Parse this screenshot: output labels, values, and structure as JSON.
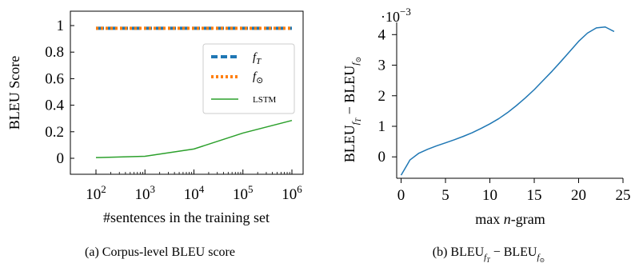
{
  "chart_data": [
    {
      "type": "line",
      "x_scale": "log",
      "xlabel": "#sentences in the training set",
      "ylabel": "BLEU Score",
      "caption": "(a) Corpus-level BLEU score",
      "xlim": [
        100,
        1000000
      ],
      "ylim": [
        0,
        1
      ],
      "x_ticks": [
        {
          "value": 100,
          "base": "10",
          "exp": "2"
        },
        {
          "value": 1000,
          "base": "10",
          "exp": "3"
        },
        {
          "value": 10000,
          "base": "10",
          "exp": "4"
        },
        {
          "value": 100000,
          "base": "10",
          "exp": "5"
        },
        {
          "value": 1000000,
          "base": "10",
          "exp": "6"
        }
      ],
      "y_ticks": [
        "0",
        "0.2",
        "0.4",
        "0.6",
        "0.8",
        "1"
      ],
      "legend_position": "top-right",
      "series": [
        {
          "name_base": "f",
          "name_sub": "T",
          "style": "dashed",
          "color": "#1f77b4",
          "x": [
            100,
            1000,
            10000,
            100000,
            1000000
          ],
          "values": [
            0.98,
            0.98,
            0.98,
            0.98,
            0.98
          ]
        },
        {
          "name_base": "f",
          "name_sub": "⊙",
          "style": "dotted",
          "color": "#ff7f0e",
          "x": [
            100,
            1000,
            10000,
            100000,
            1000000
          ],
          "values": [
            0.98,
            0.98,
            0.98,
            0.98,
            0.98
          ]
        },
        {
          "name": "LSTM",
          "style": "solid",
          "color": "#2ca02c",
          "x": [
            100,
            1000,
            10000,
            100000,
            1000000
          ],
          "values": [
            0.005,
            0.015,
            0.07,
            0.19,
            0.285
          ]
        }
      ]
    },
    {
      "type": "line",
      "xlabel": "max n-gram",
      "xlabel_parts": [
        "max ",
        "n",
        "-gram"
      ],
      "ylabel_parts": [
        "BLEU",
        "fT",
        " − BLEU",
        "f⊙"
      ],
      "caption_parts": [
        "(b) BLEU",
        "fT",
        " − BLEU",
        "f⊙"
      ],
      "scale_label": "·10",
      "scale_exp": "−3",
      "xlim": [
        -0.5,
        25
      ],
      "ylim": [
        -0.7,
        4.4
      ],
      "x_ticks": [
        "0",
        "5",
        "10",
        "15",
        "20",
        "25"
      ],
      "y_ticks": [
        "0",
        "1",
        "2",
        "3",
        "4"
      ],
      "series": [
        {
          "color": "#1f77b4",
          "x": [
            0,
            1,
            2,
            3,
            4,
            5,
            6,
            7,
            8,
            9,
            10,
            11,
            12,
            13,
            14,
            15,
            16,
            17,
            18,
            19,
            20,
            21,
            22,
            23,
            24
          ],
          "values": [
            -0.6,
            -0.1,
            0.12,
            0.25,
            0.36,
            0.46,
            0.56,
            0.67,
            0.79,
            0.93,
            1.08,
            1.25,
            1.45,
            1.68,
            1.93,
            2.2,
            2.5,
            2.8,
            3.12,
            3.45,
            3.78,
            4.05,
            4.22,
            4.25,
            4.1
          ]
        }
      ]
    }
  ]
}
